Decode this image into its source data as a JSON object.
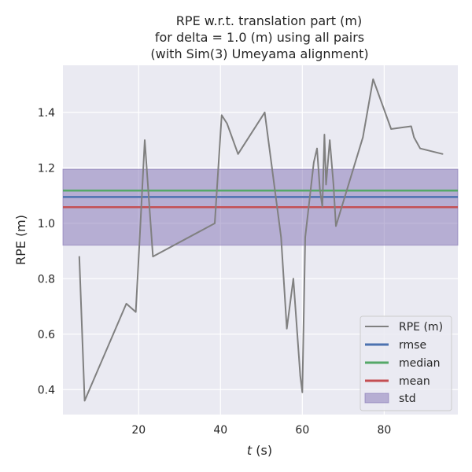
{
  "chart_data": {
    "type": "line",
    "title_lines": [
      "RPE w.r.t. translation part (m)",
      "for delta = 1.0 (m) using all pairs",
      "(with Sim(3) Umeyama alignment)"
    ],
    "xlabel_italic": "t",
    "xlabel_rest": " (s)",
    "ylabel": "RPE (m)",
    "xlim": [
      1.5,
      98
    ],
    "ylim": [
      0.31,
      1.57
    ],
    "xticks": [
      20,
      40,
      60,
      80
    ],
    "yticks": [
      0.4,
      0.6,
      0.8,
      1.0,
      1.2,
      1.4
    ],
    "ytick_labels": [
      "0.4",
      "0.6",
      "0.8",
      "1.0",
      "1.2",
      "1.4"
    ],
    "grid": true,
    "legend_position": "lower-right",
    "series": [
      {
        "name": "RPE (m)",
        "color": "#808080",
        "x": [
          5.5,
          6.8,
          17.0,
          19.3,
          20.2,
          21.5,
          23.5,
          38.6,
          40.3,
          41.6,
          44.3,
          50.8,
          54.8,
          56.2,
          57.8,
          59.5,
          60.0,
          60.7,
          62.8,
          63.6,
          64.3,
          64.9,
          65.4,
          65.8,
          66.7,
          67.6,
          68.2,
          74.8,
          77.3,
          81.7,
          86.6,
          87.3,
          88.8,
          94.3
        ],
        "y": [
          0.88,
          0.36,
          0.71,
          0.68,
          0.93,
          1.3,
          0.88,
          1.0,
          1.39,
          1.36,
          1.25,
          1.4,
          0.95,
          0.62,
          0.8,
          0.45,
          0.39,
          0.95,
          1.22,
          1.27,
          1.12,
          1.06,
          1.32,
          1.14,
          1.3,
          1.14,
          0.99,
          1.31,
          1.52,
          1.34,
          1.35,
          1.31,
          1.27,
          1.25
        ]
      }
    ],
    "stats": {
      "rmse": {
        "name": "rmse",
        "value": 1.095,
        "color": "#4c72b0"
      },
      "median": {
        "name": "median",
        "value": 1.118,
        "color": "#55a868"
      },
      "mean": {
        "name": "mean",
        "value": 1.058,
        "color": "#c44e52"
      },
      "std": {
        "name": "std",
        "low": 0.921,
        "high": 1.195,
        "color": "#8172b3"
      }
    },
    "colors": {
      "plot_background": "#eaeaf2",
      "grid": "#ffffff",
      "text": "#262626"
    }
  }
}
